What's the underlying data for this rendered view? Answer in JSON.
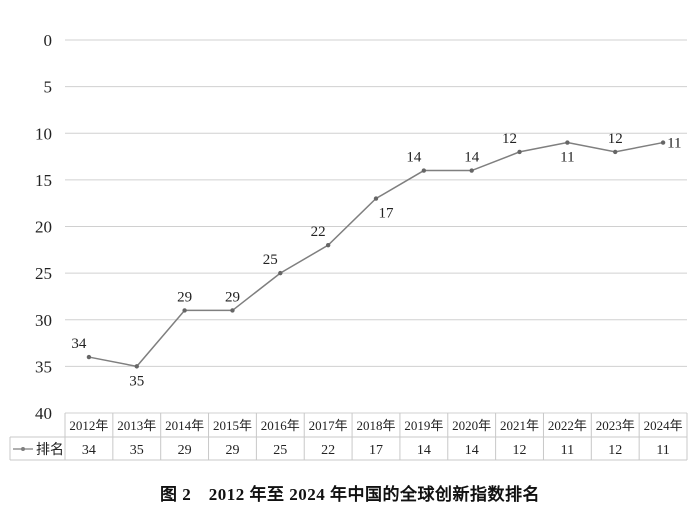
{
  "chart_data": {
    "type": "line",
    "categories": [
      "2012年",
      "2013年",
      "2014年",
      "2015年",
      "2016年",
      "2017年",
      "2018年",
      "2019年",
      "2020年",
      "2021年",
      "2022年",
      "2023年",
      "2024年"
    ],
    "series": [
      {
        "name": "排名",
        "values": [
          34,
          35,
          29,
          29,
          25,
          22,
          17,
          14,
          14,
          12,
          11,
          12,
          11
        ]
      }
    ],
    "yticks": [
      0,
      5,
      10,
      15,
      20,
      25,
      30,
      35,
      40
    ],
    "ylim": [
      0,
      40
    ],
    "y_reversed": true,
    "grid": true,
    "legend": "data-table-left",
    "data_table": true,
    "line_color": "#7f7f7f",
    "grid_color": "#d0d0d0"
  },
  "caption": "图 2　2012 年至 2024 年中国的全球创新指数排名"
}
